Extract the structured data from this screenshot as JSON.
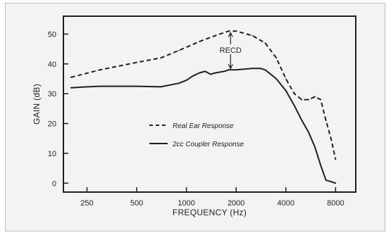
{
  "chart_data": {
    "type": "line",
    "x_scale": "log",
    "xlabel": "FREQUENCY (Hz)",
    "ylabel": "GAIN (dB)",
    "xlim": [
      180,
      10600
    ],
    "ylim": [
      -3,
      56
    ],
    "x_ticks": [
      250,
      500,
      1000,
      2000,
      4000,
      8000
    ],
    "x_tick_labels": [
      "250",
      "500",
      "1000",
      "2000",
      "4000",
      "8000"
    ],
    "y_ticks": [
      0,
      10,
      20,
      30,
      40,
      50
    ],
    "y_tick_labels": [
      "0",
      "10",
      "20",
      "30",
      "40",
      "50"
    ],
    "grid": false,
    "legend_placement": "center-left",
    "series": [
      {
        "name": "Real Ear Response",
        "style": "dashed",
        "color": "#1e1e1e",
        "x": [
          200,
          300,
          500,
          700,
          900,
          1200,
          1500,
          1800,
          2000,
          2500,
          3000,
          3500,
          4000,
          4500,
          5000,
          5500,
          6000,
          6500,
          7000,
          7500,
          8000
        ],
        "y": [
          35.5,
          38,
          40.5,
          42,
          44.5,
          47.5,
          49.5,
          51,
          51,
          49.5,
          47,
          42,
          35,
          30,
          28,
          28,
          29,
          28,
          21,
          15,
          8
        ]
      },
      {
        "name": "2cc Coupler Response",
        "style": "solid",
        "color": "#1e1e1e",
        "x": [
          200,
          250,
          300,
          400,
          500,
          700,
          900,
          1000,
          1100,
          1200,
          1300,
          1400,
          1500,
          1700,
          1800,
          2000,
          2500,
          2800,
          3000,
          3500,
          4000,
          4500,
          5000,
          5500,
          6000,
          6500,
          7000,
          7500,
          8000
        ],
        "y": [
          32,
          32.3,
          32.5,
          32.5,
          32.5,
          32.3,
          33.5,
          34.5,
          36,
          37,
          37.5,
          36.5,
          37,
          37.5,
          38,
          38,
          38.5,
          38.5,
          38,
          35,
          31,
          26,
          21,
          17,
          12,
          6,
          1,
          0.5,
          0
        ]
      }
    ],
    "annotations": [
      {
        "text": "RECD"
      }
    ]
  }
}
